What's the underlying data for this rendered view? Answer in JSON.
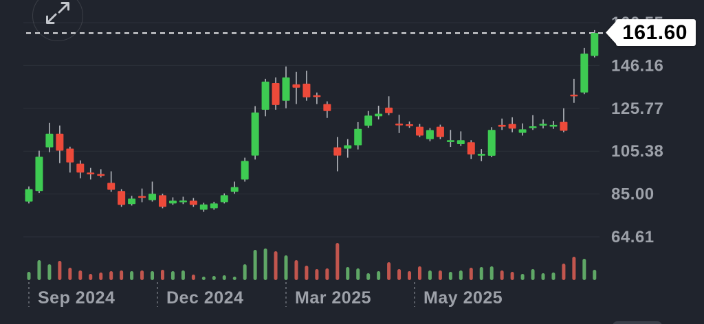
{
  "app": {
    "description": "dark-mode weekly candlestick price chart with volume"
  },
  "toolbar": {
    "expand_icon": "expand-arrows-icon"
  },
  "price_tag": {
    "label": "161.60"
  },
  "colors": {
    "background": "#20242d",
    "grid": "#2c313a",
    "bull": "#3ecb52",
    "bear": "#ed4a3a",
    "wick": "#b3b6bc",
    "volume_bull": "#5fa766",
    "volume_bear": "#c2564e",
    "axis_text": "#9da1a9",
    "last_price_line": "#e6e7e9",
    "x_tick_dash": "#70757d",
    "tag_background": "#ffffff",
    "tag_text": "#000000"
  },
  "chart_data": {
    "type": "candlestick",
    "interval": "weekly",
    "last_price": 161.6,
    "last_price_label": "161.60",
    "y_axis": {
      "tick_labels": [
        "166.55",
        "146.16",
        "125.77",
        "105.38",
        "85.00",
        "64.61"
      ],
      "tick_values": [
        166.55,
        146.16,
        125.77,
        105.38,
        85.0,
        64.61
      ],
      "position": "right"
    },
    "x_axis": {
      "ticks": [
        {
          "label": "Sep 2024",
          "candle_index": 0
        },
        {
          "label": "Dec 2024",
          "candle_index": 12.5
        },
        {
          "label": "Mar 2025",
          "candle_index": 25
        },
        {
          "label": "May 2025",
          "candle_index": 37.5
        }
      ]
    },
    "candles_format": [
      "open",
      "close",
      "high",
      "low",
      "volume_px",
      "volume_color"
    ],
    "candles": [
      [
        81.4,
        87.3,
        88.6,
        80.5,
        12,
        "g"
      ],
      [
        86.4,
        102.7,
        105.6,
        85.5,
        29,
        "g"
      ],
      [
        107.2,
        113.7,
        118.9,
        104.9,
        23,
        "g"
      ],
      [
        113.7,
        105.6,
        117.6,
        99.7,
        28,
        "r"
      ],
      [
        106.6,
        100.0,
        107.5,
        95.2,
        18,
        "r"
      ],
      [
        99.4,
        95.2,
        101.0,
        92.5,
        14,
        "r"
      ],
      [
        95.2,
        94.5,
        97.4,
        91.9,
        9,
        "r"
      ],
      [
        94.5,
        93.8,
        96.8,
        92.9,
        11,
        "r"
      ],
      [
        90.3,
        87.0,
        95.8,
        86.0,
        13,
        "r"
      ],
      [
        86.4,
        79.8,
        87.3,
        78.9,
        14,
        "r"
      ],
      [
        80.2,
        82.8,
        84.1,
        79.5,
        13,
        "g"
      ],
      [
        84.0,
        83.4,
        87.6,
        81.1,
        14,
        "r"
      ],
      [
        82.1,
        85.1,
        90.9,
        81.4,
        13,
        "g"
      ],
      [
        84.4,
        78.9,
        85.1,
        78.2,
        15,
        "r"
      ],
      [
        80.5,
        81.8,
        83.4,
        79.8,
        13,
        "g"
      ],
      [
        81.5,
        81.9,
        83.7,
        80.2,
        14,
        "g"
      ],
      [
        81.8,
        79.8,
        83.1,
        78.9,
        8,
        "r"
      ],
      [
        77.5,
        80.0,
        80.8,
        76.5,
        5,
        "g"
      ],
      [
        78.2,
        80.5,
        81.3,
        77.5,
        6,
        "g"
      ],
      [
        81.1,
        84.4,
        85.3,
        80.5,
        7,
        "g"
      ],
      [
        86.0,
        88.3,
        90.9,
        85.1,
        5,
        "g"
      ],
      [
        91.9,
        100.7,
        102.3,
        90.9,
        23,
        "g"
      ],
      [
        103.3,
        123.8,
        126.8,
        101.4,
        44,
        "g"
      ],
      [
        125.1,
        138.5,
        139.8,
        122.0,
        46,
        "g"
      ],
      [
        137.8,
        127.4,
        140.5,
        125.1,
        42,
        "r"
      ],
      [
        129.4,
        140.5,
        145.7,
        125.8,
        36,
        "g"
      ],
      [
        137.2,
        135.6,
        143.1,
        127.8,
        29,
        "r"
      ],
      [
        137.5,
        131.0,
        143.7,
        129.4,
        21,
        "r"
      ],
      [
        132.0,
        131.3,
        133.3,
        127.8,
        16,
        "r"
      ],
      [
        127.8,
        124.5,
        129.1,
        121.2,
        17,
        "r"
      ],
      [
        107.2,
        103.3,
        112.1,
        95.8,
        54,
        "r"
      ],
      [
        106.6,
        108.2,
        111.1,
        102.3,
        19,
        "g"
      ],
      [
        108.2,
        116.0,
        119.2,
        106.2,
        17,
        "g"
      ],
      [
        117.5,
        122.3,
        124.5,
        116.5,
        10,
        "g"
      ],
      [
        122.0,
        123.2,
        127.0,
        120.5,
        13,
        "g"
      ],
      [
        126.1,
        123.5,
        131.5,
        122.5,
        26,
        "r"
      ],
      [
        118.5,
        117.9,
        122.7,
        114.0,
        16,
        "r"
      ],
      [
        118.2,
        117.5,
        119.5,
        116.5,
        13,
        "r"
      ],
      [
        117.0,
        112.8,
        118.3,
        112.1,
        20,
        "r"
      ],
      [
        111.1,
        115.4,
        116.4,
        110.1,
        14,
        "g"
      ],
      [
        117.0,
        112.1,
        118.0,
        111.1,
        14,
        "r"
      ],
      [
        109.9,
        110.6,
        115.5,
        107.4,
        12,
        "g"
      ],
      [
        108.7,
        110.6,
        114.8,
        107.8,
        14,
        "g"
      ],
      [
        109.6,
        103.8,
        110.6,
        101.6,
        18,
        "r"
      ],
      [
        103.4,
        104.1,
        106.4,
        100.6,
        19,
        "g"
      ],
      [
        103.2,
        115.5,
        116.8,
        102.5,
        20,
        "g"
      ],
      [
        117.9,
        117.0,
        120.9,
        115.5,
        14,
        "r"
      ],
      [
        118.3,
        116.1,
        121.5,
        114.4,
        12,
        "r"
      ],
      [
        114.1,
        115.8,
        118.6,
        112.8,
        9,
        "g"
      ],
      [
        116.7,
        117.2,
        122.5,
        115.5,
        16,
        "g"
      ],
      [
        117.9,
        118.4,
        120.5,
        116.2,
        10,
        "g"
      ],
      [
        117.5,
        117.9,
        119.8,
        116.0,
        11,
        "g"
      ],
      [
        119.3,
        115.1,
        125.8,
        114.4,
        24,
        "r"
      ],
      [
        132.3,
        131.5,
        139.8,
        128.4,
        34,
        "r"
      ],
      [
        133.3,
        151.8,
        154.5,
        132.5,
        31,
        "g"
      ],
      [
        150.7,
        161.6,
        163.0,
        150.0,
        15,
        "g"
      ]
    ]
  }
}
